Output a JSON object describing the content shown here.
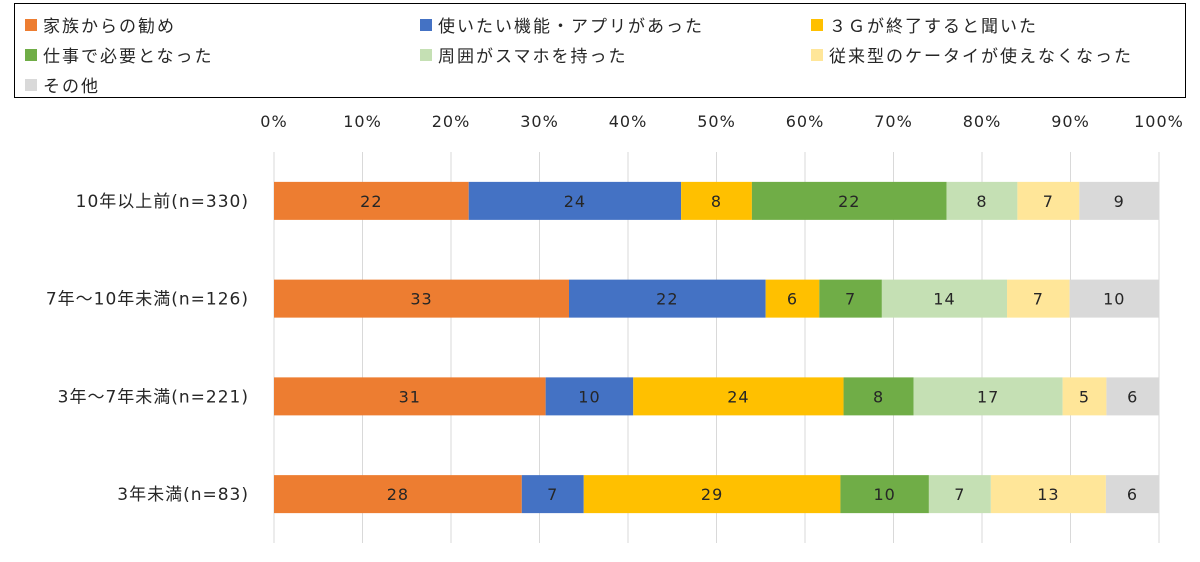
{
  "chart_data": {
    "type": "bar",
    "orientation": "horizontal",
    "stacked": true,
    "percent_scale": true,
    "xlim": [
      0,
      100
    ],
    "x_ticks": [
      "0%",
      "10%",
      "20%",
      "30%",
      "40%",
      "50%",
      "60%",
      "70%",
      "80%",
      "90%",
      "100%"
    ],
    "grid": true,
    "legend_position": "top",
    "categories": [
      "10年以上前(n=330)",
      "7年〜10年未満(n=126)",
      "3年〜7年未満(n=221)",
      "3年未満(n=83)"
    ],
    "series": [
      {
        "name": "家族からの勧め",
        "color": "#ED7D31",
        "values": [
          22,
          33,
          31,
          28
        ]
      },
      {
        "name": "使いたい機能・アプリがあった",
        "color": "#4472C4",
        "values": [
          24,
          22,
          10,
          7
        ]
      },
      {
        "name": "３Ｇが終了すると聞いた",
        "color": "#FFC000",
        "values": [
          8,
          6,
          24,
          29
        ]
      },
      {
        "name": "仕事で必要となった",
        "color": "#70AD47",
        "values": [
          22,
          7,
          8,
          10
        ]
      },
      {
        "name": "周囲がスマホを持った",
        "color": "#C5E0B4",
        "values": [
          8,
          14,
          17,
          7
        ]
      },
      {
        "name": "従来型のケータイが使えなくなった",
        "color": "#FFE699",
        "values": [
          7,
          7,
          5,
          13
        ]
      },
      {
        "name": "その他",
        "color": "#D9D9D9",
        "values": [
          9,
          10,
          6,
          6
        ]
      }
    ]
  }
}
